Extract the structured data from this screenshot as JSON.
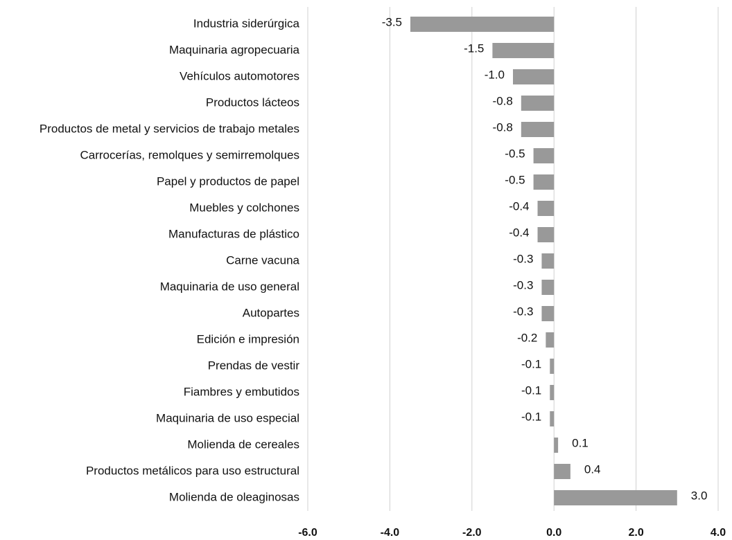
{
  "chart_data": {
    "type": "bar",
    "orientation": "horizontal",
    "categories": [
      "Industria siderúrgica",
      "Maquinaria agropecuaria",
      "Vehículos automotores",
      "Productos lácteos",
      "Productos de metal y servicios de trabajo metales",
      "Carrocerías, remolques y semirremolques",
      "Papel y productos de papel",
      "Muebles y colchones",
      "Manufacturas de plástico",
      "Carne vacuna",
      "Maquinaria de uso general",
      "Autopartes",
      "Edición e impresión",
      "Prendas de vestir",
      "Fiambres y embutidos",
      "Maquinaria de uso especial",
      "Molienda de cereales",
      "Productos metálicos para uso estructural",
      "Molienda de oleaginosas"
    ],
    "values": [
      -3.5,
      -1.5,
      -1.0,
      -0.8,
      -0.8,
      -0.5,
      -0.5,
      -0.4,
      -0.4,
      -0.3,
      -0.3,
      -0.3,
      -0.2,
      -0.1,
      -0.1,
      -0.1,
      0.1,
      0.4,
      3.0
    ],
    "value_labels": [
      "-3.5",
      "-1.5",
      "-1.0",
      "-0.8",
      "-0.8",
      "-0.5",
      "-0.5",
      "-0.4",
      "-0.4",
      "-0.3",
      "-0.3",
      "-0.3",
      "-0.2",
      "-0.1",
      "-0.1",
      "-0.1",
      "0.1",
      "0.4",
      "3.0"
    ],
    "color": "#999999",
    "xlim": [
      -6,
      4
    ],
    "xticks": [
      {
        "value": -6,
        "label": "-6.0"
      },
      {
        "value": -4,
        "label": "-4.0"
      },
      {
        "value": -2,
        "label": "-2.0"
      },
      {
        "value": 0,
        "label": "0.0"
      },
      {
        "value": 2,
        "label": "2.0"
      },
      {
        "value": 4,
        "label": "4.0"
      }
    ],
    "grid": true
  }
}
